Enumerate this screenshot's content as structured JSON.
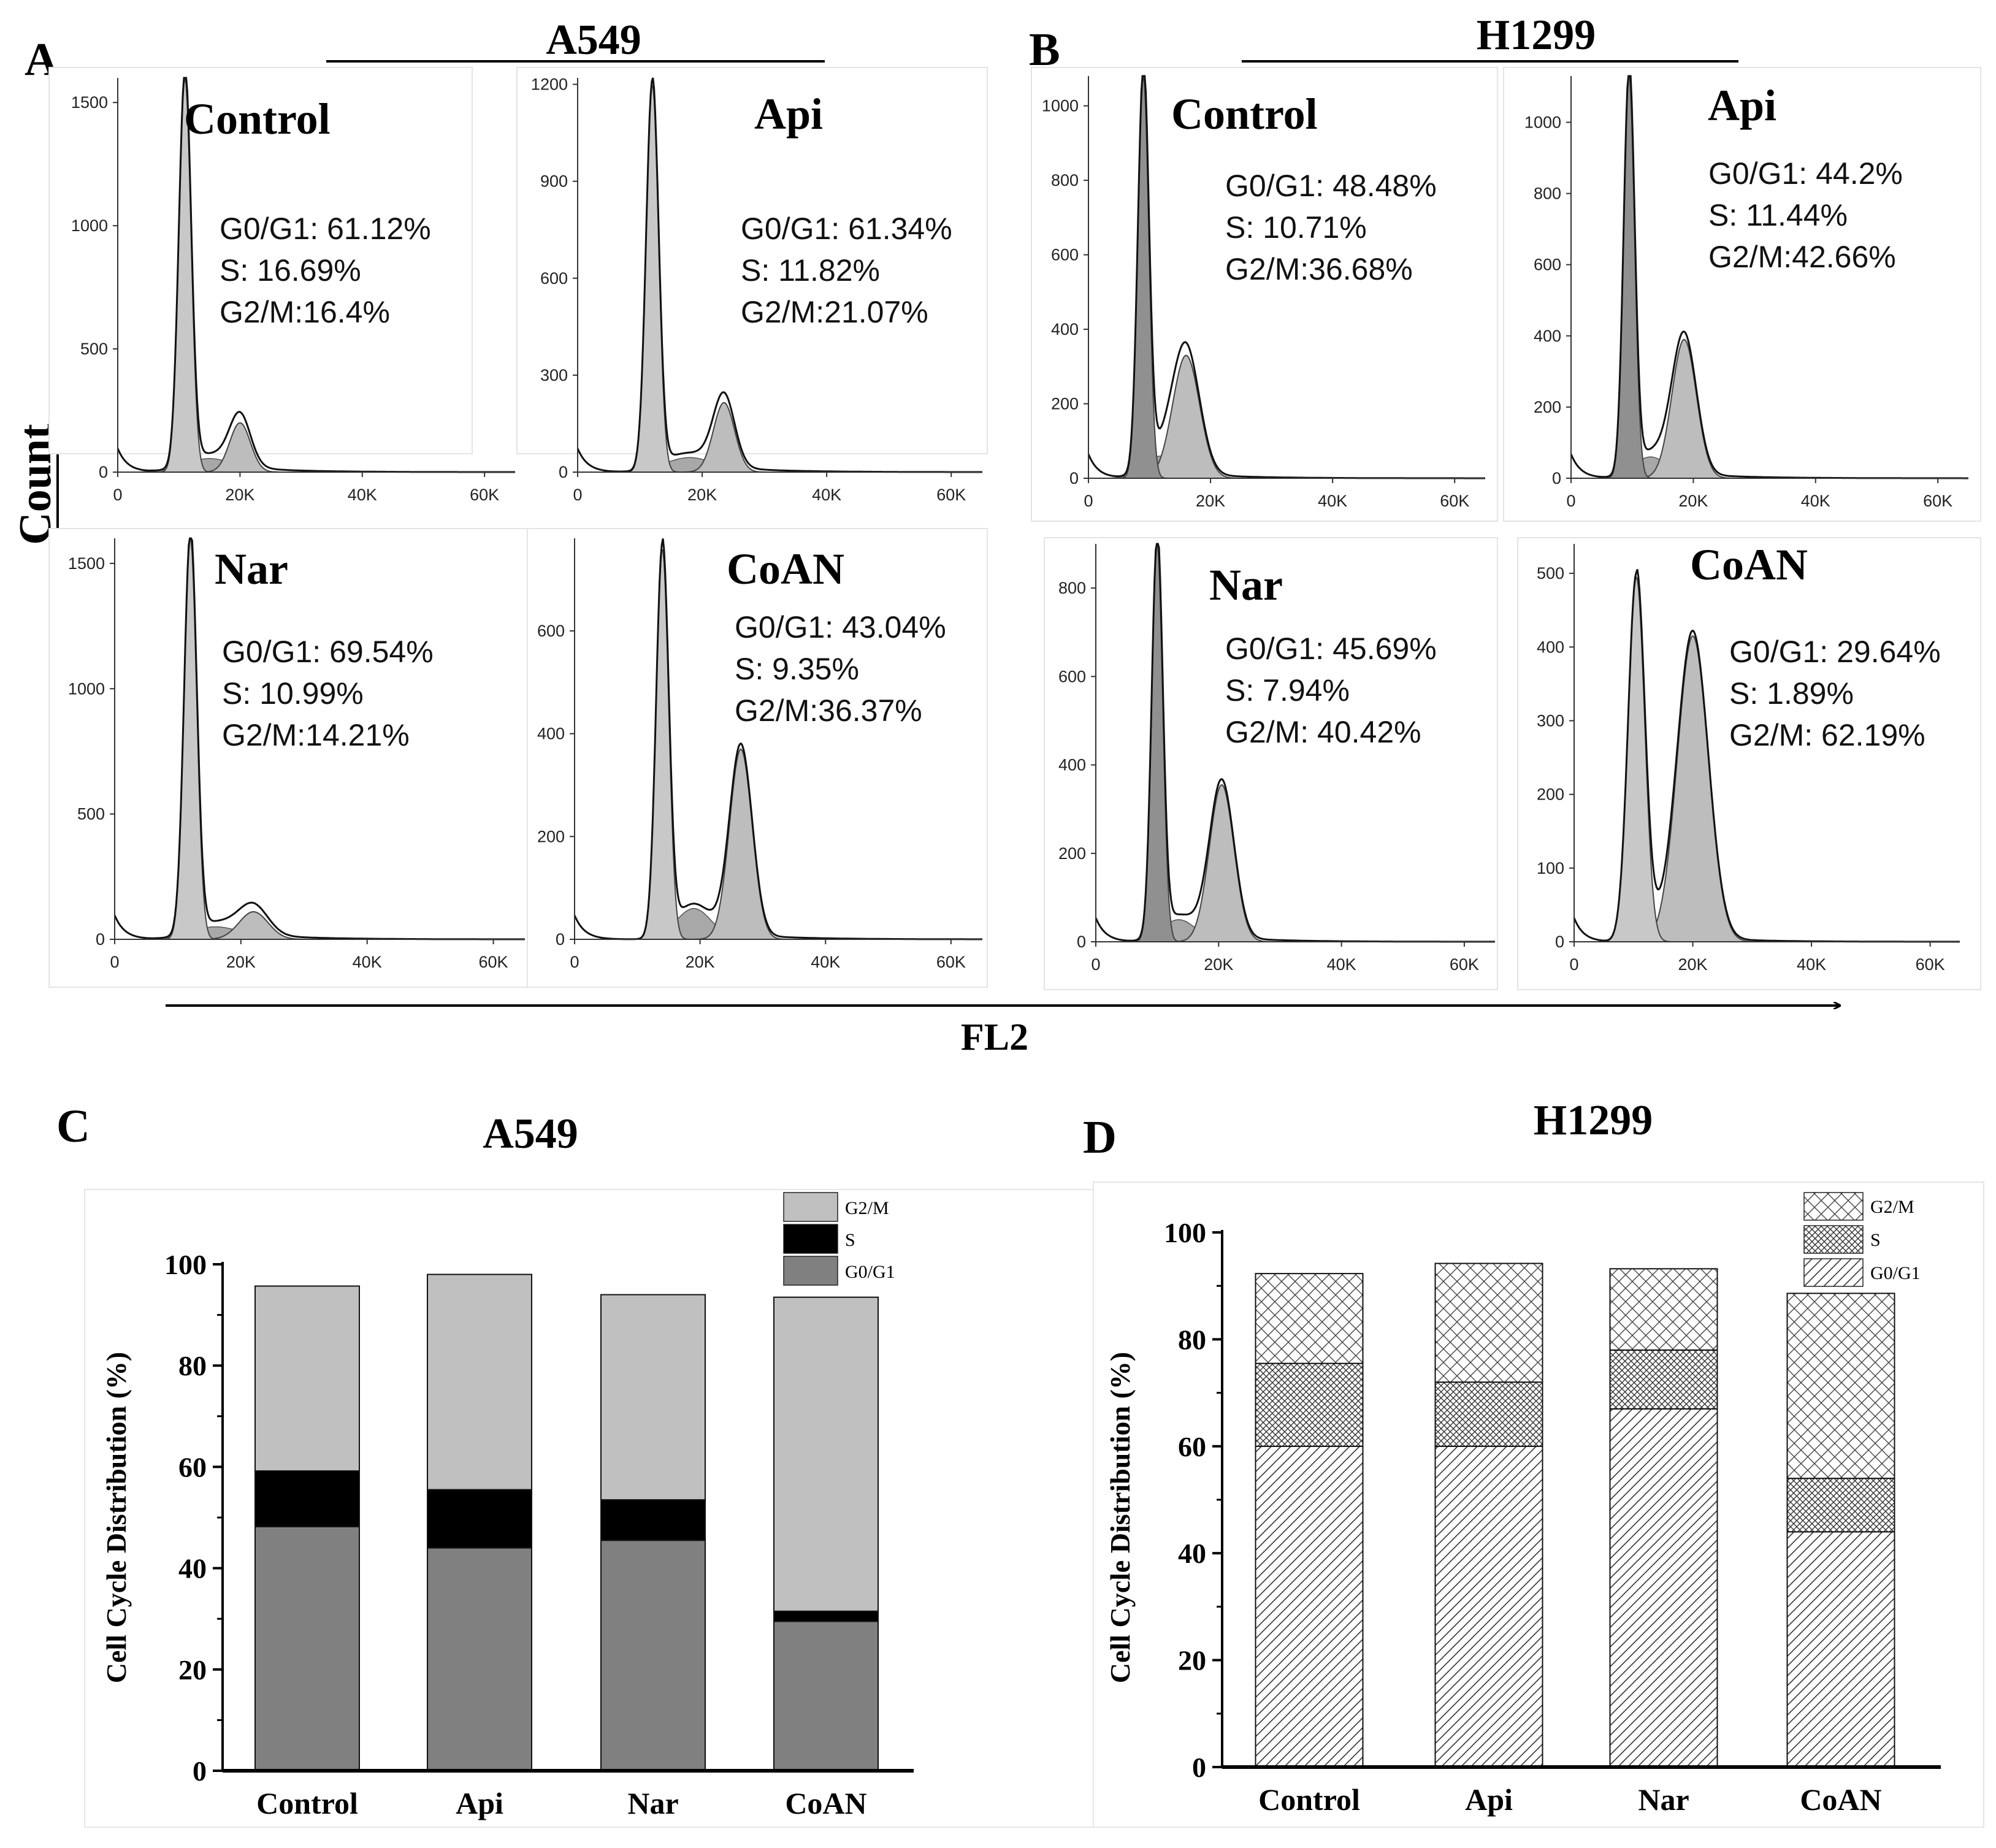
{
  "panel_letters": {
    "a": "A",
    "b": "B",
    "c": "C",
    "d": "D"
  },
  "cell_lines": {
    "a549": "A549",
    "h1299": "H1299"
  },
  "axis_labels": {
    "count": "Count",
    "fl2": "FL2"
  },
  "histogram_x_ticks": [
    "0",
    "20K",
    "40K",
    "60K"
  ],
  "chart_data": [
    {
      "type": "area",
      "panel": "A",
      "title": "Control",
      "cell_line": "A549",
      "x": {
        "label": "FL2",
        "ticks": [
          "0",
          "20K",
          "40K",
          "60K"
        ],
        "range": [
          0,
          65000
        ]
      },
      "y": {
        "label": "Count",
        "ticks": [
          "0",
          "500",
          "1000",
          "1500"
        ],
        "tick_values": [
          0,
          500,
          1000,
          1500
        ],
        "range": [
          0,
          1600
        ]
      },
      "stats": [
        "G0/G1: 61.12%",
        "S: 16.69%",
        "G2/M:16.4%"
      ],
      "peaks": {
        "g1": [
          11000,
          1600,
          1000
        ],
        "s": [
          15000,
          55,
          4000
        ],
        "g2": [
          20000,
          200,
          1700
        ]
      }
    },
    {
      "type": "area",
      "panel": "A",
      "title": "Api",
      "cell_line": "A549",
      "x": {
        "label": "FL2",
        "ticks": [
          "0",
          "20K",
          "40K",
          "60K"
        ],
        "range": [
          0,
          65000
        ]
      },
      "y": {
        "label": "Count",
        "ticks": [
          "0",
          "300",
          "600",
          "900",
          "1200"
        ],
        "tick_values": [
          0,
          300,
          600,
          900,
          1200
        ],
        "range": [
          0,
          1220
        ]
      },
      "stats": [
        "G0/G1: 61.34%",
        "S: 11.82%",
        "G2/M:21.07%"
      ],
      "peaks": {
        "g1": [
          12000,
          1200,
          1000
        ],
        "s": [
          18000,
          45,
          4000
        ],
        "g2": [
          23500,
          215,
          1700
        ]
      }
    },
    {
      "type": "area",
      "panel": "A",
      "title": "Nar",
      "cell_line": "A549",
      "x": {
        "label": "FL2",
        "ticks": [
          "0",
          "20K",
          "40K",
          "60K"
        ],
        "range": [
          0,
          65000
        ]
      },
      "y": {
        "label": "Count",
        "ticks": [
          "0",
          "500",
          "1000",
          "1500"
        ],
        "tick_values": [
          0,
          500,
          1000,
          1500
        ],
        "range": [
          0,
          1600
        ]
      },
      "stats": [
        "G0/G1: 69.54%",
        "S: 10.99%",
        "G2/M:14.21%"
      ],
      "peaks": {
        "g1": [
          12000,
          1600,
          1000
        ],
        "s": [
          16000,
          50,
          4000
        ],
        "g2": [
          22000,
          110,
          2300
        ]
      }
    },
    {
      "type": "area",
      "panel": "A",
      "title": "CoAN",
      "cell_line": "A549",
      "x": {
        "label": "FL2",
        "ticks": [
          "0",
          "20K",
          "40K",
          "60K"
        ],
        "range": [
          0,
          65000
        ]
      },
      "y": {
        "label": "Count",
        "ticks": [
          "0",
          "200",
          "400",
          "600"
        ],
        "tick_values": [
          0,
          200,
          400,
          600
        ],
        "range": [
          0,
          780
        ]
      },
      "stats": [
        "G0/G1: 43.04%",
        "S: 9.35%",
        "G2/M:36.37%"
      ],
      "peaks": {
        "g1": [
          14000,
          760,
          1000
        ],
        "s": [
          19000,
          60,
          2800
        ],
        "g2": [
          26500,
          370,
          1800
        ]
      }
    },
    {
      "type": "area",
      "panel": "B",
      "title": "Control",
      "cell_line": "H1299",
      "x": {
        "label": "FL2",
        "ticks": [
          "0",
          "20K",
          "40K",
          "60K"
        ],
        "range": [
          0,
          65000
        ]
      },
      "y": {
        "label": "Count",
        "ticks": [
          "0",
          "200",
          "400",
          "600",
          "800",
          "1000"
        ],
        "tick_values": [
          0,
          200,
          400,
          600,
          800,
          1000
        ],
        "range": [
          0,
          1080
        ]
      },
      "stats": [
        "G0/G1: 48.48%",
        "S: 10.71%",
        "G2/M:36.68%"
      ],
      "peaks": {
        "g1": [
          9000,
          1080,
          900
        ],
        "s": [
          12000,
          60,
          2800
        ],
        "g2": [
          16000,
          330,
          2200
        ]
      }
    },
    {
      "type": "area",
      "panel": "B",
      "title": "Api",
      "cell_line": "H1299",
      "x": {
        "label": "FL2",
        "ticks": [
          "0",
          "20K",
          "40K",
          "60K"
        ],
        "range": [
          0,
          65000
        ]
      },
      "y": {
        "label": "Count",
        "ticks": [
          "0",
          "200",
          "400",
          "600",
          "800",
          "1000"
        ],
        "tick_values": [
          0,
          200,
          400,
          600,
          800,
          1000
        ],
        "range": [
          0,
          1130
        ]
      },
      "stats": [
        "G0/G1: 44.2%",
        "S: 11.44%",
        "G2/M:42.66%"
      ],
      "peaks": {
        "g1": [
          9500,
          1130,
          900
        ],
        "s": [
          13000,
          60,
          2800
        ],
        "g2": [
          18500,
          390,
          2000
        ]
      }
    },
    {
      "type": "area",
      "panel": "B",
      "title": "Nar",
      "cell_line": "H1299",
      "x": {
        "label": "FL2",
        "ticks": [
          "0",
          "20K",
          "40K",
          "60K"
        ],
        "range": [
          0,
          65000
        ]
      },
      "y": {
        "label": "Count",
        "ticks": [
          "0",
          "200",
          "400",
          "600",
          "800"
        ],
        "tick_values": [
          0,
          200,
          400,
          600,
          800
        ],
        "range": [
          0,
          900
        ]
      },
      "stats": [
        "G0/G1: 45.69%",
        "S: 7.94%",
        "G2/M: 40.42%"
      ],
      "peaks": {
        "g1": [
          10000,
          900,
          900
        ],
        "s": [
          13500,
          50,
          2800
        ],
        "g2": [
          20500,
          355,
          2000
        ]
      }
    },
    {
      "type": "area",
      "panel": "B",
      "title": "CoAN",
      "cell_line": "H1299",
      "x": {
        "label": "FL2",
        "ticks": [
          "0",
          "20K",
          "40K",
          "60K"
        ],
        "range": [
          0,
          65000
        ]
      },
      "y": {
        "label": "Count",
        "ticks": [
          "0",
          "100",
          "200",
          "300",
          "400",
          "500"
        ],
        "tick_values": [
          0,
          100,
          200,
          300,
          400,
          500
        ],
        "range": [
          0,
          540
        ]
      },
      "stats": [
        "G0/G1: 29.64%",
        "S: 1.89%",
        "G2/M: 62.19%"
      ],
      "peaks": {
        "g1": [
          10500,
          495,
          1400
        ],
        "s": [
          14000,
          15,
          2500
        ],
        "g2": [
          20000,
          415,
          2600
        ]
      }
    },
    {
      "type": "bar",
      "stacked": true,
      "panel": "C",
      "title": "A549",
      "categories": [
        "Control",
        "Api",
        "Nar",
        "CoAN"
      ],
      "series": [
        {
          "name": "G0/G1",
          "values": [
            48.2,
            44,
            45.5,
            29.5
          ]
        },
        {
          "name": "S",
          "values": [
            11,
            11.5,
            8,
            2
          ]
        },
        {
          "name": "G2/M",
          "values": [
            36.5,
            42.5,
            40.5,
            62
          ]
        }
      ],
      "legend_order": [
        "G2/M",
        "S",
        "G0/G1"
      ],
      "xlabel": "",
      "ylabel": "Cell Cycle Distribution (%)",
      "ylim": [
        0,
        100
      ],
      "yticks": [
        0,
        20,
        40,
        60,
        80,
        100
      ],
      "colors": {
        "G0/G1": "#808080",
        "S": "#000000",
        "G2/M": "#c0c0c0"
      }
    },
    {
      "type": "bar",
      "stacked": true,
      "panel": "D",
      "title": "H1299",
      "categories": [
        "Control",
        "Api",
        "Nar",
        "CoAN"
      ],
      "series": [
        {
          "name": "G0/G1",
          "values": [
            60,
            60,
            67,
            44
          ]
        },
        {
          "name": "S",
          "values": [
            15.5,
            12,
            11,
            10
          ]
        },
        {
          "name": "G2/M",
          "values": [
            16.8,
            22.2,
            15.2,
            34.6
          ]
        }
      ],
      "legend_order": [
        "G2/M",
        "S",
        "G0/G1"
      ],
      "xlabel": "",
      "ylabel": "Cell Cycle Distribution (%)",
      "ylim": [
        0,
        100
      ],
      "yticks": [
        0,
        20,
        40,
        60,
        80,
        100
      ],
      "patterns": {
        "G0/G1": "diagonal",
        "S": "fine-cross",
        "G2/M": "wide-cross"
      }
    }
  ]
}
